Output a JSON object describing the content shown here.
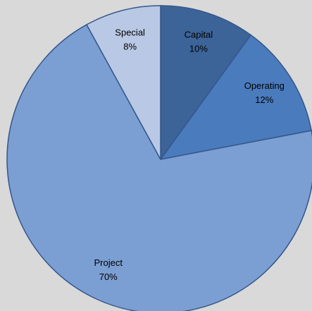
{
  "chart_data": {
    "type": "pie",
    "categories": [
      "Capital",
      "Operating",
      "Project",
      "Special"
    ],
    "values": [
      10,
      12,
      70,
      8
    ],
    "value_labels": [
      "10%",
      "12%",
      "70%",
      "8%"
    ],
    "colors": [
      "#3c6498",
      "#4a7bbd",
      "#7b9ed3",
      "#b9c8e4"
    ]
  }
}
